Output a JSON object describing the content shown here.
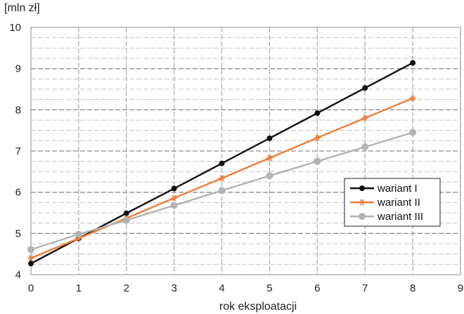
{
  "chart_data": {
    "type": "line",
    "title": "",
    "xlabel": "rok eksploatacji",
    "ylabel": "[mln zł]",
    "xlim": [
      0,
      9
    ],
    "ylim": [
      4,
      10
    ],
    "xticks": [
      0,
      1,
      2,
      3,
      4,
      5,
      6,
      7,
      8,
      9
    ],
    "yticks": [
      4,
      5,
      6,
      7,
      8,
      9,
      10
    ],
    "grid": true,
    "legend_position": "right",
    "x": [
      0,
      1,
      2,
      3,
      4,
      5,
      6,
      7,
      8
    ],
    "series": [
      {
        "name": "wariant I",
        "color": "#111111",
        "marker": "circle",
        "values": [
          4.27,
          4.88,
          5.49,
          6.09,
          6.7,
          7.31,
          7.92,
          8.53,
          9.14
        ]
      },
      {
        "name": "wariant II",
        "color": "#ee7d3b",
        "marker": "star",
        "values": [
          4.4,
          4.88,
          5.37,
          5.86,
          6.34,
          6.83,
          7.32,
          7.8,
          8.28
        ]
      },
      {
        "name": "wariant III",
        "color": "#b3b3b3",
        "marker": "circle",
        "values": [
          4.61,
          4.98,
          5.32,
          5.68,
          6.04,
          6.4,
          6.75,
          7.1,
          7.45
        ]
      }
    ]
  }
}
